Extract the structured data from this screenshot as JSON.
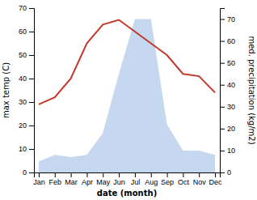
{
  "chart_data": {
    "type": "line",
    "categories": [
      "Jan",
      "Feb",
      "Mar",
      "Apr",
      "May",
      "Jun",
      "Jul",
      "Aug",
      "Sep",
      "Oct",
      "Nov",
      "Dec"
    ],
    "xlabel": "date (month)",
    "ylabel": "max temp (C)",
    "y2label": "med. precipitation (kg/m2)",
    "ylim": [
      0,
      70
    ],
    "yticks": [
      0,
      10,
      20,
      30,
      40,
      50,
      60,
      70
    ],
    "y2lim": [
      0,
      75
    ],
    "y2ticks": [
      0,
      10,
      20,
      30,
      40,
      50,
      60,
      70
    ],
    "series": [
      {
        "type": "area",
        "axis": "y2",
        "color": "#c5d8f0",
        "values": [
          5,
          8,
          7,
          8,
          18,
          45,
          70,
          70,
          22,
          10,
          10,
          8
        ]
      },
      {
        "type": "line",
        "color": "#c0392b",
        "values": [
          29,
          32,
          40,
          55,
          63,
          65,
          60,
          55,
          50,
          42,
          41,
          34
        ]
      }
    ]
  }
}
